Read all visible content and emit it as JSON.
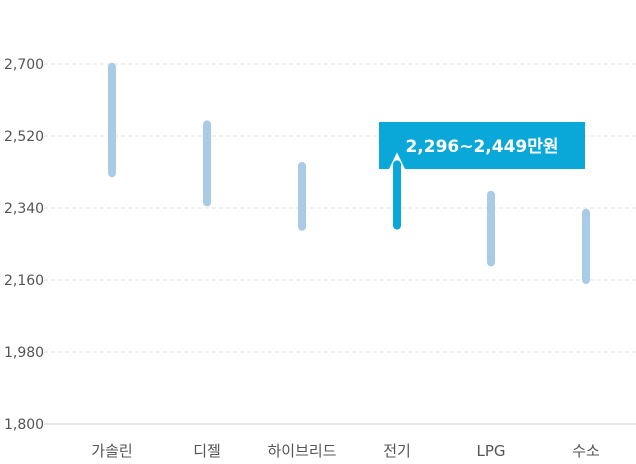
{
  "chart_data": {
    "type": "range-bar",
    "categories": [
      "가솔린",
      "디젤",
      "하이브리드",
      "전기",
      "LPG",
      "수소"
    ],
    "ranges": [
      {
        "category": "가솔린",
        "min": 2427,
        "max": 2693
      },
      {
        "category": "디젤",
        "min": 2354,
        "max": 2549
      },
      {
        "category": "하이브리드",
        "min": 2293,
        "max": 2445
      },
      {
        "category": "전기",
        "min": 2296,
        "max": 2449
      },
      {
        "category": "LPG",
        "min": 2204,
        "max": 2373
      },
      {
        "category": "수소",
        "min": 2160,
        "max": 2328
      }
    ],
    "y_ticks": [
      "2,700",
      "2,520",
      "2,340",
      "2,160",
      "1,980",
      "1,800"
    ],
    "y_tick_values": [
      2700,
      2520,
      2340,
      2160,
      1980,
      1800
    ],
    "ylim": [
      1800,
      2700
    ],
    "grid": true,
    "highlight_index": 3,
    "tooltip": "2,296~2,449만원",
    "colors": {
      "bar": "#a9cbe6",
      "highlight": "#0aa7d9",
      "tooltip_bg": "#0aa7d9",
      "grid": "#e2e2e2",
      "axis": "#cfcfcf"
    }
  }
}
